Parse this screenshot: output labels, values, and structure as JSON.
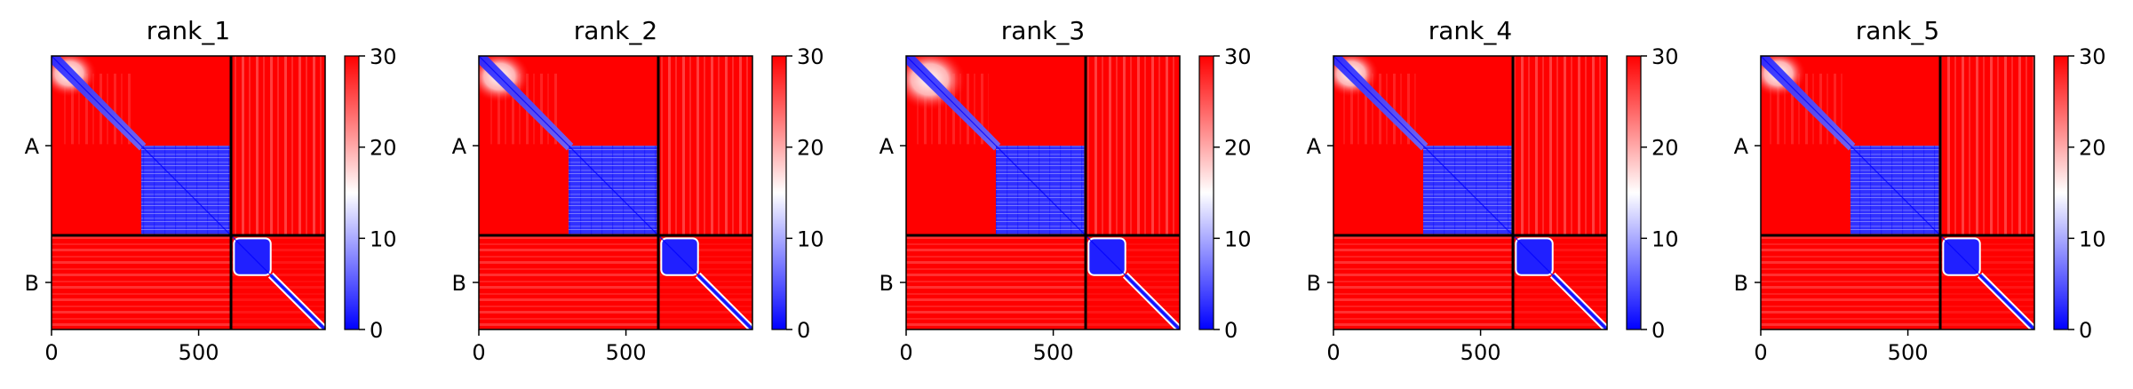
{
  "chart_data": [
    {
      "type": "heatmap",
      "title": "rank_1",
      "matrix_size": 930,
      "chain_boundary": 610,
      "chain_labels": [
        "A",
        "B"
      ],
      "chain_label_positions": [
        305,
        770
      ],
      "xticks": [
        0,
        500
      ],
      "xlim": [
        0,
        930
      ],
      "colorbar": {
        "min": 0,
        "max": 30,
        "ticks": [
          0,
          10,
          20,
          30
        ],
        "colormap": "bwr"
      },
      "features": {
        "diag_end": 310,
        "block_a": [
          305,
          605
        ],
        "block_b": [
          620,
          745
        ],
        "blob": [
          60,
          60,
          95
        ]
      }
    },
    {
      "type": "heatmap",
      "title": "rank_2",
      "matrix_size": 930,
      "chain_boundary": 610,
      "chain_labels": [
        "A",
        "B"
      ],
      "chain_label_positions": [
        305,
        770
      ],
      "xticks": [
        0,
        500
      ],
      "xlim": [
        0,
        930
      ],
      "colorbar": {
        "min": 0,
        "max": 30,
        "ticks": [
          0,
          10,
          20,
          30
        ],
        "colormap": "bwr"
      },
      "features": {
        "diag_end": 310,
        "block_a": [
          305,
          605
        ],
        "block_b": [
          620,
          745
        ],
        "blob": [
          70,
          70,
          105
        ]
      }
    },
    {
      "type": "heatmap",
      "title": "rank_3",
      "matrix_size": 930,
      "chain_boundary": 610,
      "chain_labels": [
        "A",
        "B"
      ],
      "chain_label_positions": [
        305,
        770
      ],
      "xticks": [
        0,
        500
      ],
      "xlim": [
        0,
        930
      ],
      "colorbar": {
        "min": 0,
        "max": 30,
        "ticks": [
          0,
          10,
          20,
          30
        ],
        "colormap": "bwr"
      },
      "features": {
        "diag_end": 310,
        "block_a": [
          305,
          605
        ],
        "block_b": [
          620,
          745
        ],
        "blob": [
          80,
          80,
          125
        ]
      }
    },
    {
      "type": "heatmap",
      "title": "rank_4",
      "matrix_size": 930,
      "chain_boundary": 610,
      "chain_labels": [
        "A",
        "B"
      ],
      "chain_label_positions": [
        305,
        770
      ],
      "xticks": [
        0,
        500
      ],
      "xlim": [
        0,
        930
      ],
      "colorbar": {
        "min": 0,
        "max": 30,
        "ticks": [
          0,
          10,
          20,
          30
        ],
        "colormap": "bwr"
      },
      "features": {
        "diag_end": 310,
        "block_a": [
          305,
          605
        ],
        "block_b": [
          620,
          745
        ],
        "blob": [
          60,
          60,
          95
        ]
      }
    },
    {
      "type": "heatmap",
      "title": "rank_5",
      "matrix_size": 930,
      "chain_boundary": 610,
      "chain_labels": [
        "A",
        "B"
      ],
      "chain_label_positions": [
        305,
        770
      ],
      "xticks": [
        0,
        500
      ],
      "xlim": [
        0,
        930
      ],
      "colorbar": {
        "min": 0,
        "max": 30,
        "ticks": [
          0,
          10,
          20,
          30
        ],
        "colormap": "bwr"
      },
      "features": {
        "diag_end": 310,
        "block_a": [
          305,
          605
        ],
        "block_b": [
          620,
          745
        ],
        "blob": [
          60,
          60,
          95
        ]
      }
    }
  ],
  "colors": {
    "high": "#ff0000",
    "mid": "#ffffff",
    "low": "#0000ff",
    "frame": "#000000"
  }
}
